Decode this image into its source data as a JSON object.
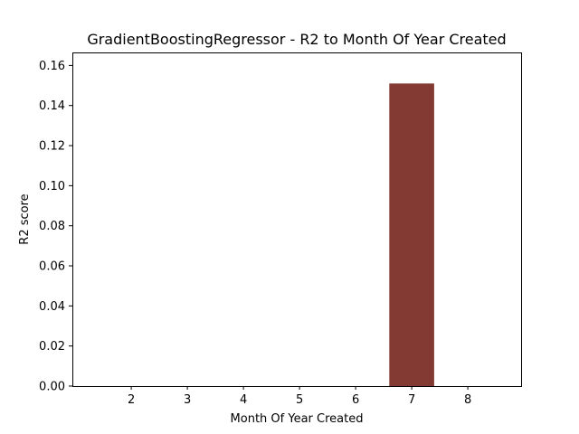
{
  "chart_data": {
    "type": "bar",
    "title": "GradientBoostingRegressor - R2 to Month Of Year Created",
    "xlabel": "Month Of Year Created",
    "ylabel": "R2 score",
    "categories": [
      "2",
      "3",
      "4",
      "5",
      "6",
      "7",
      "8"
    ],
    "x": [
      2,
      3,
      4,
      5,
      6,
      7,
      8
    ],
    "values": [
      0,
      0,
      0,
      0,
      0,
      0.151,
      0
    ],
    "xlim": [
      0.95,
      8.95
    ],
    "ylim": [
      0,
      0.1665
    ],
    "yticks": [
      0.0,
      0.02,
      0.04,
      0.06,
      0.08,
      0.1,
      0.12,
      0.14,
      0.16
    ],
    "ytick_labels": [
      "0.00",
      "0.02",
      "0.04",
      "0.06",
      "0.08",
      "0.10",
      "0.12",
      "0.14",
      "0.16"
    ],
    "bar_width": 0.8,
    "bar_color": "#823a33",
    "grid": false,
    "legend": "none"
  }
}
